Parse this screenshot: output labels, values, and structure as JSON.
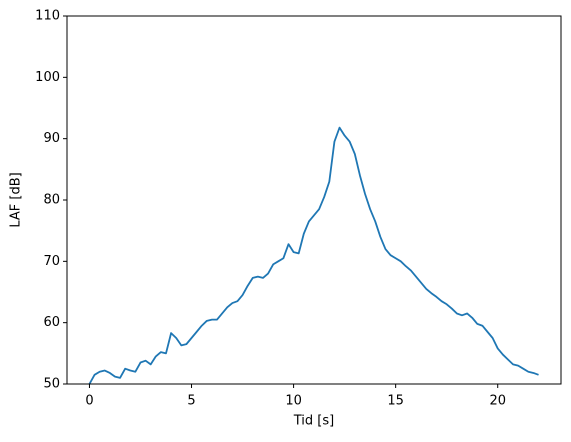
{
  "chart_data": {
    "type": "line",
    "xlabel": "Tid [s]",
    "ylabel": "LAF [dB]",
    "x": [
      0,
      0.25,
      0.5,
      0.75,
      1,
      1.25,
      1.5,
      1.75,
      2,
      2.25,
      2.5,
      2.75,
      3,
      3.25,
      3.5,
      3.75,
      4,
      4.25,
      4.5,
      4.75,
      5,
      5.25,
      5.5,
      5.75,
      6,
      6.25,
      6.5,
      6.75,
      7,
      7.25,
      7.5,
      7.75,
      8,
      8.25,
      8.5,
      8.75,
      9,
      9.25,
      9.5,
      9.75,
      10,
      10.25,
      10.5,
      10.75,
      11,
      11.25,
      11.5,
      11.75,
      12,
      12.25,
      12.5,
      12.75,
      13,
      13.25,
      13.5,
      13.75,
      14,
      14.25,
      14.5,
      14.75,
      15,
      15.25,
      15.5,
      15.75,
      16,
      16.25,
      16.5,
      16.75,
      17,
      17.25,
      17.5,
      17.75,
      18,
      18.25,
      18.5,
      18.75,
      19,
      19.25,
      19.5,
      19.75,
      20,
      20.25,
      20.5,
      20.75,
      21,
      21.25,
      21.5,
      21.75,
      22
    ],
    "series": [
      {
        "name": "LAF",
        "color": "#1f77b4",
        "values": [
          50,
          51.5,
          52,
          52.2,
          51.8,
          51.2,
          51,
          52.5,
          52.2,
          52,
          53.5,
          53.8,
          53.2,
          54.5,
          55.2,
          55,
          58.3,
          57.5,
          56.3,
          56.5,
          57.5,
          58.5,
          59.5,
          60.3,
          60.5,
          60.5,
          61.5,
          62.5,
          63.2,
          63.5,
          64.5,
          66,
          67.3,
          67.5,
          67.3,
          68,
          69.5,
          70,
          70.5,
          72.8,
          71.5,
          71.3,
          74.5,
          76.5,
          77.5,
          78.5,
          80.5,
          83,
          89.5,
          91.8,
          90.5,
          89.5,
          87.5,
          84,
          81,
          78.5,
          76.5,
          74,
          72,
          71,
          70.5,
          70,
          69.2,
          68.5,
          67.5,
          66.5,
          65.5,
          64.8,
          64.2,
          63.5,
          63,
          62.3,
          61.5,
          61.2,
          61.5,
          60.8,
          59.8,
          59.5,
          58.5,
          57.5,
          55.8,
          54.8,
          54,
          53.2,
          53,
          52.5,
          52,
          51.8,
          51.5
        ]
      }
    ],
    "xlim": [
      -1.1,
      23.1
    ],
    "ylim": [
      50,
      110
    ],
    "xticks": [
      0,
      5,
      10,
      15,
      20
    ],
    "yticks": [
      50,
      60,
      70,
      80,
      90,
      100,
      110
    ]
  }
}
